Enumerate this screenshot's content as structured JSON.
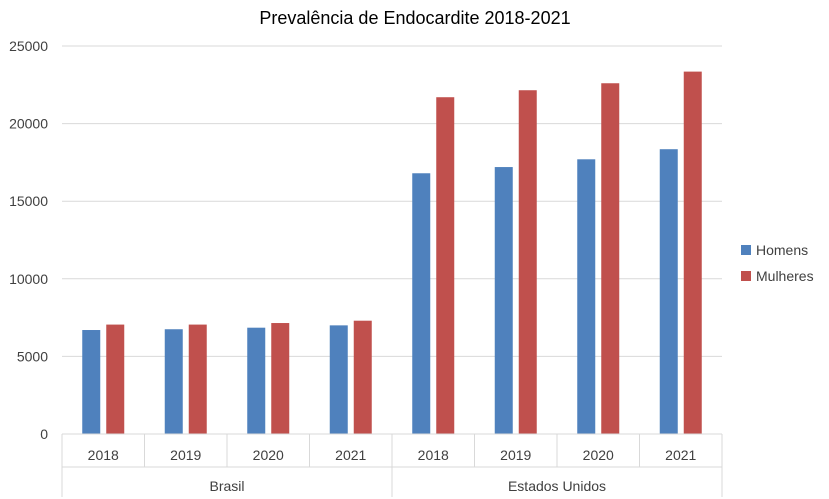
{
  "chart_data": {
    "type": "bar",
    "title": "Prevalência de Endocardite 2018-2021",
    "xlabel": "",
    "ylabel": "",
    "ylim": [
      0,
      25000
    ],
    "yticks": [
      0,
      5000,
      10000,
      15000,
      20000,
      25000
    ],
    "groups": [
      "Brasil",
      "Estados Unidos"
    ],
    "categories": [
      "2018",
      "2019",
      "2020",
      "2021",
      "2018",
      "2019",
      "2020",
      "2021"
    ],
    "category_group": [
      0,
      0,
      0,
      0,
      1,
      1,
      1,
      1
    ],
    "series": [
      {
        "name": "Homens",
        "color": "#4f81bd",
        "values": [
          6700,
          6750,
          6850,
          7000,
          16800,
          17200,
          17700,
          18350
        ]
      },
      {
        "name": "Mulheres",
        "color": "#c0504d",
        "values": [
          7050,
          7050,
          7150,
          7300,
          21700,
          22150,
          22600,
          23350
        ]
      }
    ],
    "grid": true,
    "legend_position": "right"
  }
}
